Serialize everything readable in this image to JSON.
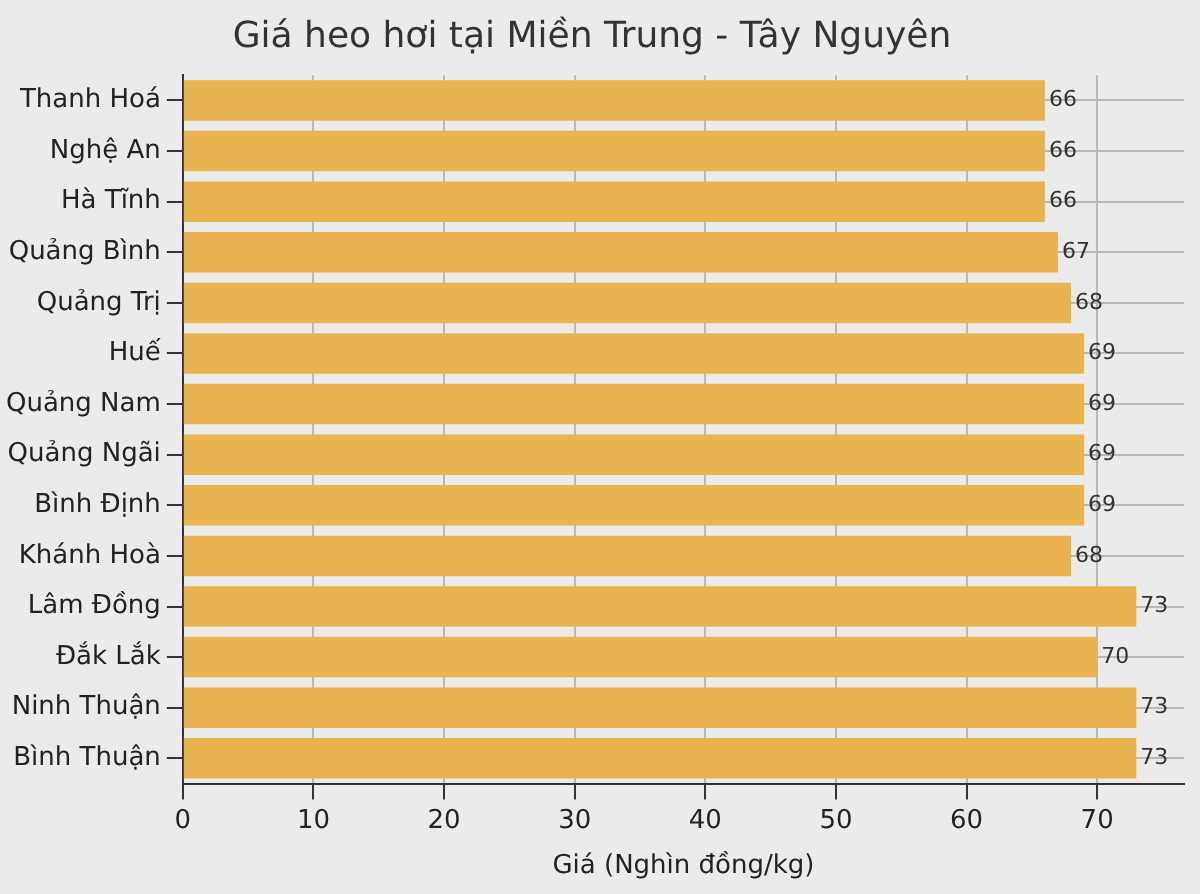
{
  "chart_data": {
    "type": "bar",
    "orientation": "horizontal",
    "title": "Giá heo hơi tại Miền Trung - Tây Nguyên",
    "xlabel": "Giá (Nghìn đồng/kg)",
    "categories": [
      "Thanh Hoá",
      "Nghệ An",
      "Hà Tĩnh",
      "Quảng Bình",
      "Quảng Trị",
      "Huế",
      "Quảng Nam",
      "Quảng Ngãi",
      "Bình Định",
      "Khánh Hoà",
      "Lâm Đồng",
      "Đắk Lắk",
      "Ninh Thuận",
      "Bình Thuận"
    ],
    "values": [
      66,
      66,
      66,
      67,
      68,
      69,
      69,
      69,
      69,
      68,
      73,
      70,
      73,
      73
    ],
    "color": "#e9b350",
    "xlim": [
      0,
      76.65
    ],
    "xticks": [
      0,
      10,
      20,
      30,
      40,
      50,
      60,
      70
    ],
    "grid": true,
    "data_labels": true,
    "legend": false
  }
}
